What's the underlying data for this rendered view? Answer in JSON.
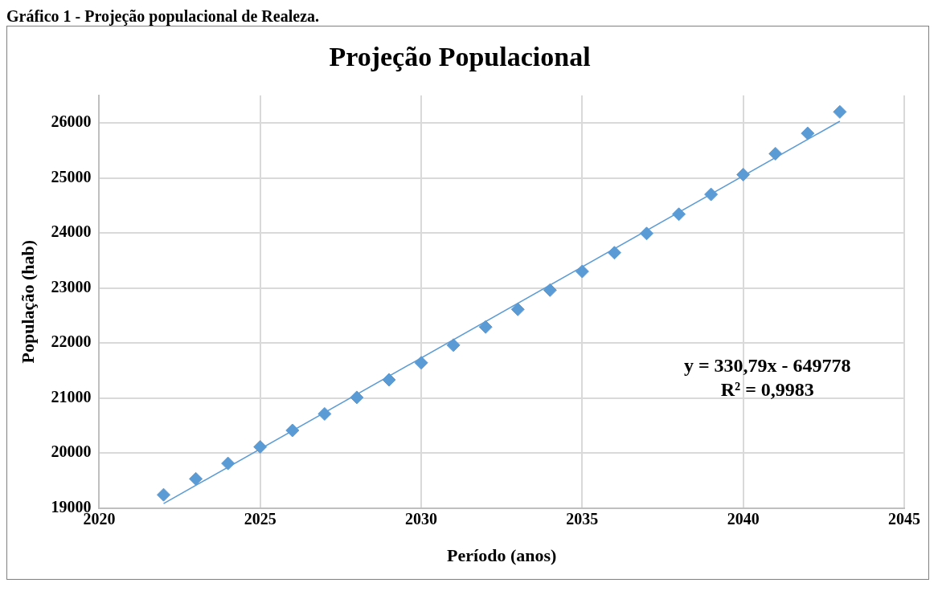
{
  "chart_data": {
    "type": "scatter",
    "title": "Projeção Populacional",
    "subtitle": "Gráfico 1 - Projeção populacional de Realeza.",
    "xlabel": "Período (anos)",
    "ylabel": "População (hab)",
    "x": [
      2022,
      2023,
      2024,
      2025,
      2026,
      2027,
      2028,
      2029,
      2030,
      2031,
      2032,
      2033,
      2034,
      2035,
      2036,
      2037,
      2038,
      2039,
      2040,
      2041,
      2042,
      2043
    ],
    "series": [
      {
        "color": "#5b9bd5",
        "marker": "diamond",
        "values": [
          19240,
          19530,
          19810,
          20110,
          20410,
          20710,
          21010,
          21330,
          21640,
          21960,
          22290,
          22610,
          22960,
          23300,
          23640,
          23990,
          24340,
          24700,
          25060,
          25440,
          25810,
          26200
        ]
      },
      {
        "type": "line",
        "color": "#5b9bd5",
        "marker": "none",
        "x": [
          2022,
          2043
        ],
        "values": [
          19080,
          26030
        ]
      }
    ],
    "annotations": [
      "y = 330,79x - 649778",
      "R² = 0,9983"
    ],
    "xlim": [
      2020,
      2045
    ],
    "xticks": [
      2020,
      2025,
      2030,
      2035,
      2040,
      2045
    ],
    "ylim": [
      19000,
      26500
    ],
    "yticks": [
      19000,
      20000,
      21000,
      22000,
      23000,
      24000,
      25000,
      26000
    ],
    "grid": true,
    "legend": false
  }
}
